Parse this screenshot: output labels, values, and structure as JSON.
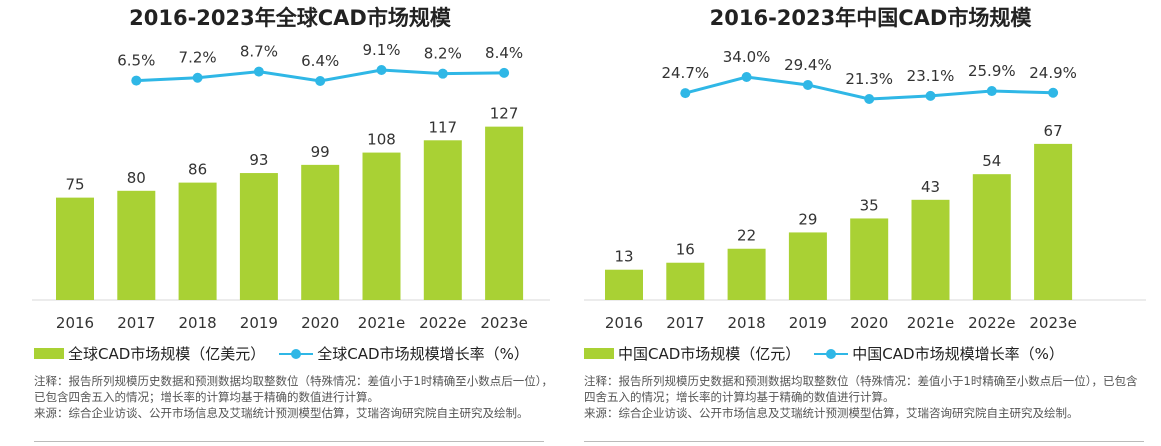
{
  "charts": [
    {
      "title": "2016-2023年全球CAD市场规模",
      "legend_bar": "全球CAD市场规模（亿美元）",
      "legend_line": "全球CAD市场规模增长率（%）",
      "note": "注释：报告所列规模历史数据和预测数据均取整数位（特殊情况：差值小于1时精确至小数点后一位），已包含四舍五入的情况；增长率的计算均基于精确的数值进行计算。",
      "source": "来源：综合企业访谈、公开市场信息及艾瑞统计预测模型估算，艾瑞咨询研究院自主研究及绘制。"
    },
    {
      "title": "2016-2023年中国CAD市场规模",
      "legend_bar": "中国CAD市场规模（亿元）",
      "legend_line": "中国CAD市场规模增长率（%）",
      "note": "注释：报告所列规模历史数据和预测数据均取整数位（特殊情况：差值小于1时精确至小数点后一位），已包含四舍五入的情况；增长率的计算均基于精确的数值进行计算。",
      "source": "来源：综合企业访谈、公开市场信息及艾瑞统计预测模型估算，艾瑞咨询研究院自主研究及绘制。"
    }
  ],
  "chart_data": [
    {
      "type": "bar",
      "title": "2016-2023年全球CAD市场规模",
      "categories": [
        "2016",
        "2017",
        "2018",
        "2019",
        "2020",
        "2021e",
        "2022e",
        "2023e"
      ],
      "series": [
        {
          "name": "全球CAD市场规模（亿美元）",
          "type": "bar",
          "values": [
            75,
            80,
            86,
            93,
            99,
            108,
            117,
            127
          ],
          "labels": [
            "75",
            "80",
            "86",
            "93",
            "99",
            "108",
            "117",
            "127"
          ]
        },
        {
          "name": "全球CAD市场规模增长率（%）",
          "type": "line",
          "values": [
            null,
            6.5,
            7.2,
            8.7,
            6.4,
            9.1,
            8.2,
            8.4
          ],
          "labels": [
            "",
            "6.5%",
            "7.2%",
            "8.7%",
            "6.4%",
            "9.1%",
            "8.2%",
            "8.4%"
          ]
        }
      ],
      "bar_color": "#a9d134",
      "line_color": "#2fb7e6",
      "legend_position": "bottom"
    },
    {
      "type": "bar",
      "title": "2016-2023年中国CAD市场规模",
      "categories": [
        "2016",
        "2017",
        "2018",
        "2019",
        "2020",
        "2021e",
        "2022e",
        "2023e"
      ],
      "series": [
        {
          "name": "中国CAD市场规模（亿元）",
          "type": "bar",
          "values": [
            13,
            16,
            22,
            29,
            35,
            43,
            54,
            67
          ],
          "labels": [
            "13",
            "16",
            "22",
            "29",
            "35",
            "43",
            "54",
            "67"
          ]
        },
        {
          "name": "中国CAD市场规模增长率（%）",
          "type": "line",
          "values": [
            null,
            24.7,
            34.0,
            29.4,
            21.3,
            23.1,
            25.9,
            24.9
          ],
          "labels": [
            "",
            "24.7%",
            "34.0%",
            "29.4%",
            "21.3%",
            "23.1%",
            "25.9%",
            "24.9%"
          ]
        }
      ],
      "bar_color": "#a9d134",
      "line_color": "#2fb7e6",
      "legend_position": "bottom"
    }
  ]
}
